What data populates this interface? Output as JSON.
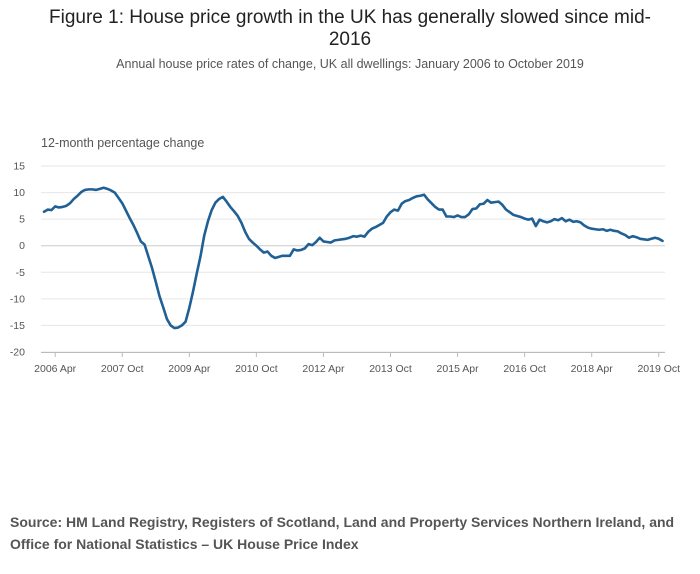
{
  "chart_data": {
    "type": "line",
    "title": "Figure 1: House price growth in the UK has generally slowed since mid-2016",
    "subtitle": "Annual house price rates of change, UK all dwellings: January 2006 to October 2019",
    "ylabel": "12-month percentage change",
    "xlabel": "",
    "ylim": [
      -20,
      15
    ],
    "yticks": [
      15,
      10,
      5,
      0,
      -5,
      -10,
      -15,
      -20
    ],
    "ytick_labels": [
      "15",
      "10",
      "5",
      "0",
      "-5",
      "-10",
      "-15",
      "-20"
    ],
    "xtick_labels": [
      "2006 Apr",
      "2007 Oct",
      "2009 Apr",
      "2010 Oct",
      "2012 Apr",
      "2013 Oct",
      "2015 Apr",
      "2016 Oct",
      "2018 Apr",
      "2019 Oct"
    ],
    "grid": true,
    "legend": "none",
    "line_color": "#206095",
    "start": "2006-01",
    "series": [
      {
        "values": [
          6.4,
          6.8,
          6.7,
          7.4,
          7.2,
          7.3,
          7.5,
          8.0,
          8.8,
          9.4,
          10.1,
          10.5,
          10.6,
          10.6,
          10.5,
          10.7,
          10.9,
          10.7,
          10.4,
          10.0,
          9.0,
          8.0,
          6.6,
          5.2,
          3.9,
          2.4,
          0.8,
          0.2,
          -2.0,
          -4.2,
          -6.8,
          -9.5,
          -11.6,
          -13.8,
          -15.0,
          -15.5,
          -15.4,
          -15.0,
          -14.3,
          -11.7,
          -8.6,
          -5.2,
          -2.0,
          1.9,
          4.6,
          6.7,
          8.1,
          8.8,
          9.2,
          8.3,
          7.3,
          6.5,
          5.6,
          4.3,
          2.6,
          1.3,
          0.6,
          0.0,
          -0.7,
          -1.3,
          -1.1,
          -1.9,
          -2.3,
          -2.1,
          -1.9,
          -1.9,
          -1.9,
          -0.7,
          -0.9,
          -0.8,
          -0.5,
          0.3,
          0.1,
          0.7,
          1.5,
          0.8,
          0.7,
          0.6,
          1.0,
          1.1,
          1.2,
          1.3,
          1.5,
          1.8,
          1.7,
          1.9,
          1.7,
          2.6,
          3.2,
          3.5,
          3.9,
          4.3,
          5.5,
          6.3,
          6.8,
          6.6,
          7.9,
          8.4,
          8.6,
          9.0,
          9.3,
          9.4,
          9.6,
          8.7,
          8.0,
          7.3,
          6.8,
          6.8,
          5.5,
          5.5,
          5.4,
          5.7,
          5.4,
          5.4,
          5.9,
          6.9,
          7.0,
          7.8,
          7.9,
          8.6,
          8.1,
          8.2,
          8.3,
          7.7,
          6.8,
          6.3,
          5.8,
          5.6,
          5.4,
          5.1,
          4.9,
          5.1,
          3.7,
          4.9,
          4.6,
          4.4,
          4.6,
          5.0,
          4.8,
          5.2,
          4.6,
          4.9,
          4.5,
          4.6,
          4.4,
          3.8,
          3.4,
          3.2,
          3.1,
          3.0,
          3.1,
          2.8,
          3.0,
          2.8,
          2.7,
          2.3,
          2.0,
          1.5,
          1.8,
          1.6,
          1.3,
          1.2,
          1.1,
          1.3,
          1.5,
          1.3,
          0.9
        ]
      }
    ]
  },
  "source": "Source: HM Land Registry, Registers of Scotland, Land and Property Services Northern Ireland, and Office for National Statistics – UK House Price Index"
}
